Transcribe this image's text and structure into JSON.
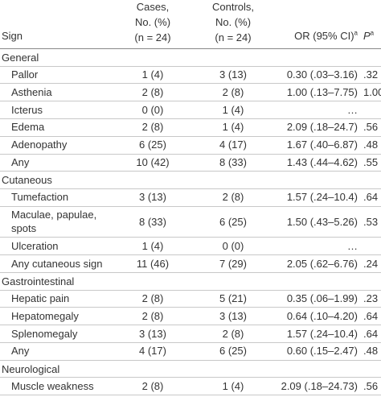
{
  "header": {
    "sign": "Sign",
    "cases": [
      "Cases,",
      "No. (%)",
      "(n = 24)"
    ],
    "controls": [
      "Controls,",
      "No. (%)",
      "(n = 24)"
    ],
    "or": "OR (95% CI)",
    "or_sup": "a",
    "p": "P",
    "p_sup": "a"
  },
  "sections": [
    {
      "title": "General",
      "rows": [
        {
          "sign": [
            "Pallor"
          ],
          "cases": "1 (4)",
          "controls": "3 (13)",
          "or": "0.30 (.03–3.16)",
          "p": ".32"
        },
        {
          "sign": [
            "Asthenia"
          ],
          "cases": "2 (8)",
          "controls": "2 (8)",
          "or": "1.00 (.13–7.75)",
          "p": "1.00"
        },
        {
          "sign": [
            "Icterus"
          ],
          "cases": "0 (0)",
          "controls": "1 (4)",
          "or": "…"
        },
        {
          "sign": [
            "Edema"
          ],
          "cases": "2 (8)",
          "controls": "1 (4)",
          "or": "2.09 (.18–24.7)",
          "p": ".56"
        },
        {
          "sign": [
            "Adenopathy"
          ],
          "cases": "6 (25)",
          "controls": "4 (17)",
          "or": "1.67 (.40–6.87)",
          "p": ".48"
        },
        {
          "sign": [
            "Any"
          ],
          "cases": "10 (42)",
          "controls": "8 (33)",
          "or": "1.43 (.44–4.62)",
          "p": ".55"
        }
      ]
    },
    {
      "title": "Cutaneous",
      "rows": [
        {
          "sign": [
            "Tumefaction"
          ],
          "cases": "3 (13)",
          "controls": "2 (8)",
          "or": "1.57 (.24–10.4)",
          "p": ".64"
        },
        {
          "sign": [
            "Maculae, papulae,",
            "spots"
          ],
          "cases": "8 (33)",
          "controls": "6 (25)",
          "or": "1.50 (.43–5.26)",
          "p": ".53"
        },
        {
          "sign": [
            "Ulceration"
          ],
          "cases": "1 (4)",
          "controls": "0 (0)",
          "or": "…"
        },
        {
          "sign": [
            "Any cutaneous sign"
          ],
          "cases": "11 (46)",
          "controls": "7 (29)",
          "or": "2.05 (.62–6.76)",
          "p": ".24"
        }
      ]
    },
    {
      "title": "Gastrointestinal",
      "rows": [
        {
          "sign": [
            "Hepatic pain"
          ],
          "cases": "2 (8)",
          "controls": "5 (21)",
          "or": "0.35 (.06–1.99)",
          "p": ".23"
        },
        {
          "sign": [
            "Hepatomegaly"
          ],
          "cases": "2 (8)",
          "controls": "3 (13)",
          "or": "0.64 (.10–4.20)",
          "p": ".64"
        },
        {
          "sign": [
            "Splenomegaly"
          ],
          "cases": "3 (13)",
          "controls": "2 (8)",
          "or": "1.57 (.24–10.4)",
          "p": ".64"
        },
        {
          "sign": [
            "Any"
          ],
          "cases": "4 (17)",
          "controls": "6 (25)",
          "or": "0.60 (.15–2.47)",
          "p": ".48"
        }
      ]
    },
    {
      "title": "Neurological",
      "rows": [
        {
          "sign": [
            "Muscle weakness"
          ],
          "cases": "2 (8)",
          "controls": "1 (4)",
          "or": "2.09 (.18–24.73)",
          "p": ".56"
        }
      ]
    }
  ]
}
